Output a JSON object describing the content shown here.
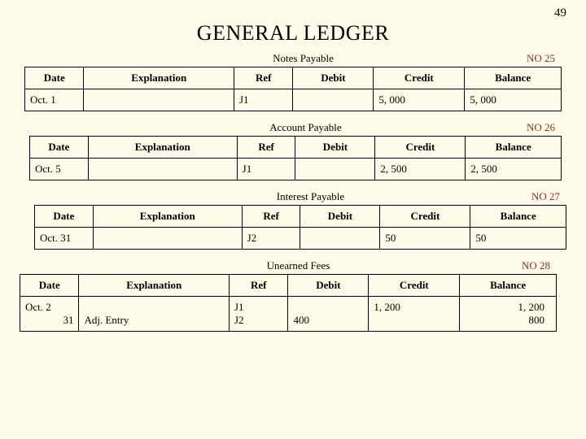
{
  "page_number": "49",
  "title": "GENERAL LEDGER",
  "column_headers": {
    "date": "Date",
    "explanation": "Explanation",
    "ref": "Ref",
    "debit": "Debit",
    "credit": "Credit",
    "balance": "Balance"
  },
  "accounts": [
    {
      "name": "Notes Payable",
      "no_label": "NO 25",
      "rows": [
        {
          "date_left": "Oct. 1",
          "date_right": "",
          "explanation": "",
          "ref": "J1",
          "debit": "",
          "credit": "5, 000",
          "balance": "5, 000"
        }
      ],
      "indent": ""
    },
    {
      "name": "Account Payable",
      "no_label": "NO 26",
      "rows": [
        {
          "date_left": "Oct. 5",
          "date_right": "",
          "explanation": "",
          "ref": "J1",
          "debit": "",
          "credit": "2, 500",
          "balance": "2, 500"
        }
      ],
      "indent": "indent-1"
    },
    {
      "name": "Interest Payable",
      "no_label": "NO 27",
      "rows": [
        {
          "date_left": "Oct. 31",
          "date_right": "",
          "explanation": "",
          "ref": "J2",
          "debit": "",
          "credit": "50",
          "balance": "50"
        }
      ],
      "indent": "indent-2"
    },
    {
      "name": "Unearned Fees",
      "no_label": "NO 28",
      "rows": [
        {
          "date_left": "Oct. 2",
          "date_right": "",
          "explanation": "",
          "ref": "J1",
          "debit": "",
          "credit": "1, 200",
          "balance": "1, 200"
        },
        {
          "date_left": "",
          "date_right": "31",
          "explanation": "Adj. Entry",
          "ref": "J2",
          "debit": "400",
          "credit": "",
          "balance": "800"
        }
      ],
      "indent": "indent-3"
    }
  ],
  "colors": {
    "background": "#fdfce9",
    "border": "#000000",
    "no_label": "#8b2d2d"
  }
}
